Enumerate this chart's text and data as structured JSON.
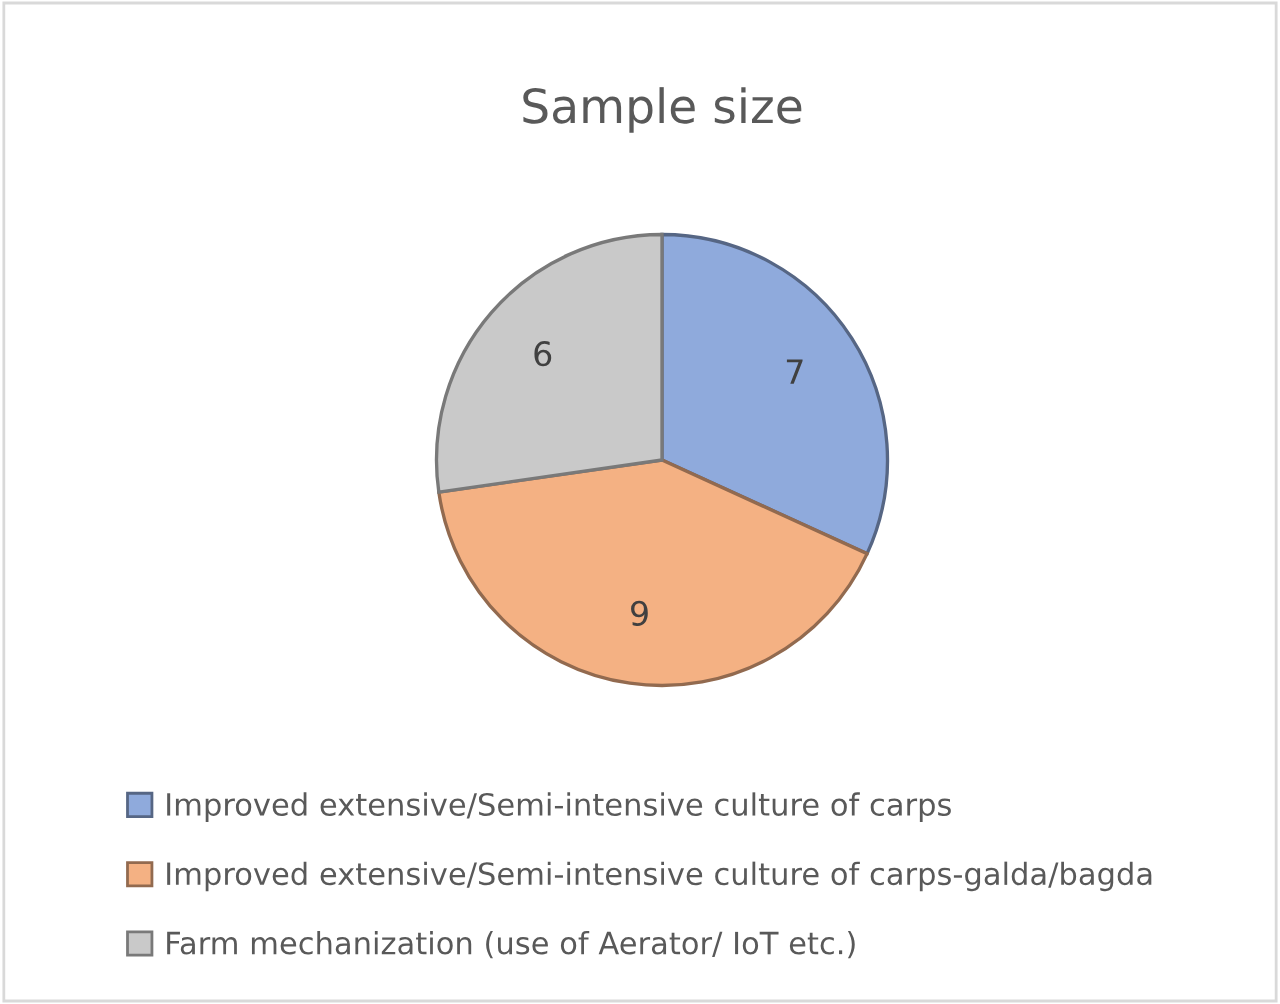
{
  "chart_data": {
    "type": "pie",
    "title": "Sample size",
    "categories": [
      "Improved extensive/Semi-intensive culture of carps",
      "Improved extensive/Semi-intensive culture of carps-galda/bagda",
      "Farm mechanization (use of Aerator/ IoT etc.)"
    ],
    "values": [
      7,
      9,
      6
    ],
    "colors": [
      "#8faadc",
      "#f4b183",
      "#c9c9c9"
    ],
    "data_labels": true,
    "legend": "bottom"
  }
}
